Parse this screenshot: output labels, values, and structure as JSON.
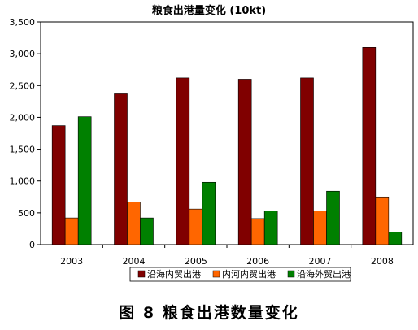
{
  "caption": "图 8  粮食出港数量变化",
  "chart_data": {
    "type": "bar",
    "title": "粮食出港量变化 (10kt)",
    "xlabel": "",
    "ylabel": "",
    "categories": [
      "2003",
      "2004",
      "2005",
      "2006",
      "2007",
      "2008"
    ],
    "series": [
      {
        "name": "沿海内贸出港",
        "color": "#800000",
        "values": [
          1870,
          2370,
          2620,
          2600,
          2620,
          3100
        ]
      },
      {
        "name": "内河内贸出港",
        "color": "#ff6600",
        "values": [
          420,
          670,
          560,
          410,
          530,
          750
        ]
      },
      {
        "name": "沿海外贸出港",
        "color": "#008000",
        "values": [
          2010,
          420,
          980,
          530,
          840,
          200
        ]
      }
    ],
    "ylim": [
      0,
      3500
    ],
    "yticks": [
      0,
      500,
      1000,
      1500,
      2000,
      2500,
      3000,
      3500
    ],
    "ytick_labels": [
      "0",
      "500",
      "1,000",
      "1,500",
      "2,000",
      "2,500",
      "3,000",
      "3,500"
    ],
    "grid": false,
    "legend": "bottom"
  }
}
